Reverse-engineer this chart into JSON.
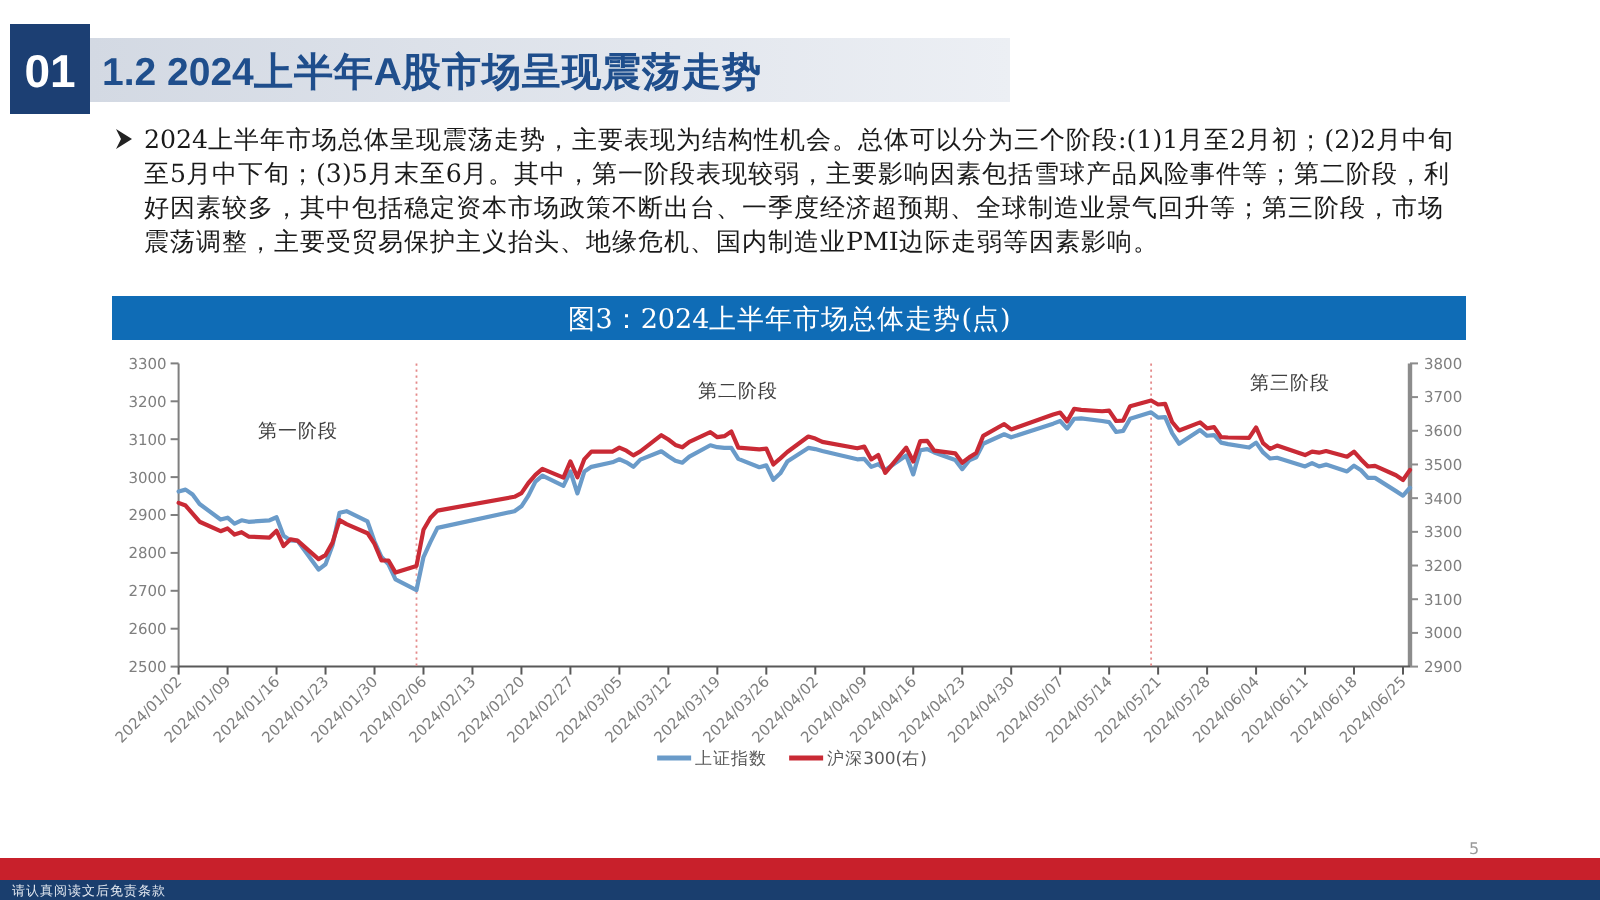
{
  "chart_data": {
    "type": "line",
    "title": "1.2 2024上半年A股市场呈现震荡走势",
    "subtitle": "图3：2024上半年市场总体走势(点)",
    "annotations": [
      "01",
      "2024上半年市场总体呈现震荡走势，主要表现为结构性机会。总体可以分为三个阶段:(1)1月至2月初；(2)2月中旬至5月中下旬；(3)5月末至6月。其中，第一阶段表现较弱，主要影响因素包括雪球产品风险事件等；第二阶段，利好因素较多，其中包括稳定资本市场政策不断出台、一季度经济超预期、全球制造业景气回升等；第三阶段，市场震荡调整，主要受贸易保护主义抬头、地缘危机、国内制造业PMI边际走弱等因素影响。",
      "第一阶段",
      "第二阶段",
      "第三阶段",
      "请认真阅读文后免责条款",
      "5"
    ],
    "x": [
      "2024-01-02",
      "2024-01-03",
      "2024-01-04",
      "2024-01-05",
      "2024-01-08",
      "2024-01-09",
      "2024-01-10",
      "2024-01-11",
      "2024-01-12",
      "2024-01-15",
      "2024-01-16",
      "2024-01-17",
      "2024-01-18",
      "2024-01-19",
      "2024-01-22",
      "2024-01-23",
      "2024-01-24",
      "2024-01-25",
      "2024-01-26",
      "2024-01-29",
      "2024-01-30",
      "2024-01-31",
      "2024-02-01",
      "2024-02-02",
      "2024-02-05",
      "2024-02-06",
      "2024-02-07",
      "2024-02-08",
      "2024-02-19",
      "2024-02-20",
      "2024-02-21",
      "2024-02-22",
      "2024-02-23",
      "2024-02-26",
      "2024-02-27",
      "2024-02-28",
      "2024-02-29",
      "2024-03-01",
      "2024-03-04",
      "2024-03-05",
      "2024-03-06",
      "2024-03-07",
      "2024-03-08",
      "2024-03-11",
      "2024-03-12",
      "2024-03-13",
      "2024-03-14",
      "2024-03-15",
      "2024-03-18",
      "2024-03-19",
      "2024-03-20",
      "2024-03-21",
      "2024-03-22",
      "2024-03-25",
      "2024-03-26",
      "2024-03-27",
      "2024-03-28",
      "2024-03-29",
      "2024-04-01",
      "2024-04-02",
      "2024-04-03",
      "2024-04-08",
      "2024-04-09",
      "2024-04-10",
      "2024-04-11",
      "2024-04-12",
      "2024-04-15",
      "2024-04-16",
      "2024-04-17",
      "2024-04-18",
      "2024-04-19",
      "2024-04-22",
      "2024-04-23",
      "2024-04-24",
      "2024-04-25",
      "2024-04-26",
      "2024-04-29",
      "2024-04-30",
      "2024-05-06",
      "2024-05-07",
      "2024-05-08",
      "2024-05-09",
      "2024-05-10",
      "2024-05-13",
      "2024-05-14",
      "2024-05-15",
      "2024-05-16",
      "2024-05-17",
      "2024-05-20",
      "2024-05-21",
      "2024-05-22",
      "2024-05-23",
      "2024-05-24",
      "2024-05-27",
      "2024-05-28",
      "2024-05-29",
      "2024-05-30",
      "2024-05-31",
      "2024-06-03",
      "2024-06-04",
      "2024-06-05",
      "2024-06-06",
      "2024-06-07",
      "2024-06-11",
      "2024-06-12",
      "2024-06-13",
      "2024-06-14",
      "2024-06-17",
      "2024-06-18",
      "2024-06-19",
      "2024-06-20",
      "2024-06-21",
      "2024-06-24",
      "2024-06-25",
      "2024-06-26"
    ],
    "series": [
      {
        "name": "上证指数",
        "color": "#6a9bc9",
        "values": [
          2962,
          2967,
          2954,
          2929,
          2888,
          2893,
          2877,
          2886,
          2882,
          2886,
          2894,
          2845,
          2833,
          2832,
          2756,
          2770,
          2820,
          2906,
          2910,
          2883,
          2830,
          2789,
          2770,
          2730,
          2702,
          2789,
          2829,
          2866,
          2910,
          2923,
          2951,
          2988,
          3004,
          2977,
          3015,
          2957,
          3015,
          3027,
          3039,
          3047,
          3039,
          3027,
          3046,
          3068,
          3055,
          3043,
          3038,
          3054,
          3084,
          3079,
          3077,
          3077,
          3048,
          3026,
          3031,
          2993,
          3010,
          3041,
          3077,
          3074,
          3069,
          3047,
          3048,
          3027,
          3034,
          3019,
          3057,
          3007,
          3071,
          3074,
          3065,
          3045,
          3021,
          3044,
          3052,
          3088,
          3113,
          3105,
          3141,
          3148,
          3128,
          3154,
          3155,
          3148,
          3145,
          3119,
          3122,
          3154,
          3171,
          3157,
          3158,
          3116,
          3088,
          3124,
          3109,
          3111,
          3091,
          3087,
          3078,
          3091,
          3065,
          3049,
          3051,
          3028,
          3037,
          3028,
          3033,
          3015,
          3030,
          3018,
          2998,
          2998,
          2963,
          2951,
          2972
        ]
      },
      {
        "name": "沪深300(右)",
        "color": "#c92a35",
        "axis": "y2",
        "values": [
          3386,
          3378,
          3354,
          3330,
          3302,
          3310,
          3292,
          3299,
          3286,
          3283,
          3303,
          3258,
          3278,
          3274,
          3219,
          3231,
          3268,
          3335,
          3323,
          3296,
          3264,
          3215,
          3215,
          3179,
          3199,
          3306,
          3342,
          3363,
          3404,
          3415,
          3445,
          3469,
          3487,
          3461,
          3509,
          3462,
          3516,
          3538,
          3538,
          3550,
          3541,
          3527,
          3539,
          3587,
          3574,
          3558,
          3551,
          3567,
          3596,
          3581,
          3584,
          3598,
          3550,
          3545,
          3547,
          3500,
          3518,
          3537,
          3583,
          3577,
          3567,
          3548,
          3553,
          3515,
          3528,
          3475,
          3550,
          3509,
          3569,
          3570,
          3541,
          3533,
          3505,
          3521,
          3534,
          3585,
          3620,
          3604,
          3648,
          3654,
          3628,
          3665,
          3662,
          3658,
          3660,
          3629,
          3630,
          3673,
          3690,
          3678,
          3680,
          3626,
          3601,
          3625,
          3607,
          3611,
          3581,
          3580,
          3579,
          3610,
          3563,
          3546,
          3556,
          3528,
          3538,
          3535,
          3540,
          3523,
          3538,
          3515,
          3494,
          3496,
          3468,
          3454,
          3484
        ]
      }
    ],
    "xlim": [
      "2024-01-02",
      "2024-06-26"
    ],
    "xticks": [
      {
        "value": "2024-01-02",
        "label": "2024/01/02"
      },
      {
        "value": "2024-01-09",
        "label": "2024/01/09"
      },
      {
        "value": "2024-01-16",
        "label": "2024/01/16"
      },
      {
        "value": "2024-01-23",
        "label": "2024/01/23"
      },
      {
        "value": "2024-01-30",
        "label": "2024/01/30"
      },
      {
        "value": "2024-02-06",
        "label": "2024/02/06"
      },
      {
        "value": "2024-02-13",
        "label": "2024/02/13"
      },
      {
        "value": "2024-02-20",
        "label": "2024/02/20"
      },
      {
        "value": "2024-02-27",
        "label": "2024/02/27"
      },
      {
        "value": "2024-03-05",
        "label": "2024/03/05"
      },
      {
        "value": "2024-03-12",
        "label": "2024/03/12"
      },
      {
        "value": "2024-03-19",
        "label": "2024/03/19"
      },
      {
        "value": "2024-03-26",
        "label": "2024/03/26"
      },
      {
        "value": "2024-04-02",
        "label": "2024/04/02"
      },
      {
        "value": "2024-04-09",
        "label": "2024/04/09"
      },
      {
        "value": "2024-04-16",
        "label": "2024/04/16"
      },
      {
        "value": "2024-04-23",
        "label": "2024/04/23"
      },
      {
        "value": "2024-04-30",
        "label": "2024/04/30"
      },
      {
        "value": "2024-05-07",
        "label": "2024/05/07"
      },
      {
        "value": "2024-05-14",
        "label": "2024/05/14"
      },
      {
        "value": "2024-05-21",
        "label": "2024/05/21"
      },
      {
        "value": "2024-05-28",
        "label": "2024/05/28"
      },
      {
        "value": "2024-06-04",
        "label": "2024/06/04"
      },
      {
        "value": "2024-06-11",
        "label": "2024/06/11"
      },
      {
        "value": "2024-06-18",
        "label": "2024/06/18"
      },
      {
        "value": "2024-06-25",
        "label": "2024/06/25"
      }
    ],
    "ylim": [
      2500,
      3300
    ],
    "yticks": [
      2500,
      2600,
      2700,
      2800,
      2900,
      3000,
      3100,
      3200,
      3300
    ],
    "y2lim": [
      2900,
      3800
    ],
    "y2ticks": [
      2900,
      3000,
      3100,
      3200,
      3300,
      3400,
      3500,
      3600,
      3700,
      3800
    ],
    "ref_lines": [
      {
        "axis": "x",
        "value": "2024-02-05",
        "color": "#e48a8a",
        "line_style": "dotted"
      },
      {
        "axis": "x",
        "value": "2024-05-20",
        "color": "#e48a8a",
        "line_style": "dotted"
      }
    ],
    "legend": "bottom",
    "marker": "none",
    "line_style": "solid"
  }
}
